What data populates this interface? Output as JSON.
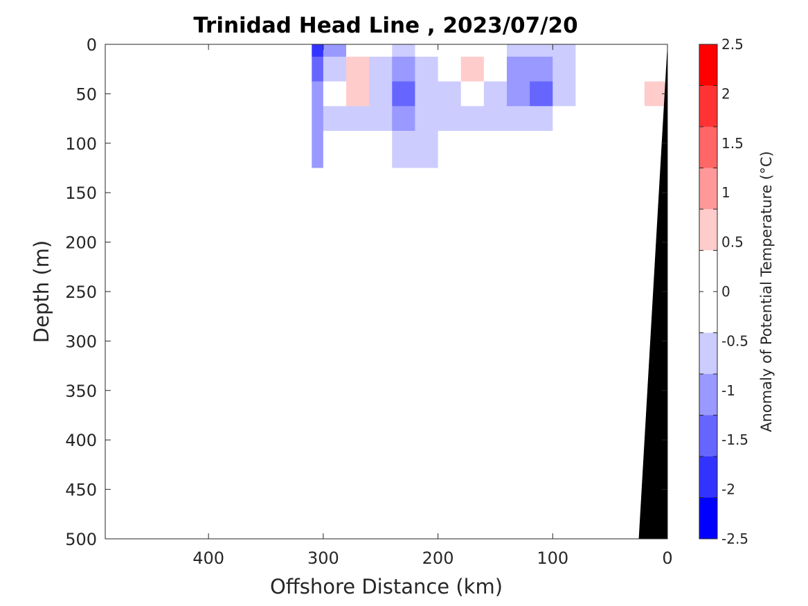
{
  "chart_data": {
    "type": "heatmap",
    "title": "Trinidad Head Line , 2023/07/20",
    "xlabel": "Offshore Distance (km)",
    "ylabel": "Depth (m)",
    "colorbar_label": "Anomaly of Potential Temperature (°C)",
    "xlim": [
      490,
      0
    ],
    "ylim": [
      500,
      0
    ],
    "x_ticks": [
      400,
      300,
      200,
      100,
      0
    ],
    "y_ticks": [
      0,
      50,
      100,
      150,
      200,
      250,
      300,
      350,
      400,
      450,
      500
    ],
    "colorbar_range": [
      -2.5,
      2.5
    ],
    "colorbar_ticks": [
      2.5,
      2,
      1.5,
      1,
      0.5,
      0,
      -0.5,
      -1,
      -1.5,
      -2,
      -2.5
    ],
    "colorbar_colors": [
      "#ff0000",
      "#ff3333",
      "#ff6666",
      "#ff9999",
      "#ffcccc",
      "#ffffff",
      "#ffffff",
      "#ccccff",
      "#9999ff",
      "#6666ff",
      "#3333ff",
      "#0000ff"
    ],
    "data_extent_km": [
      310,
      0
    ],
    "cells": {
      "x_km": [
        310,
        290,
        270,
        250,
        230,
        210,
        190,
        170,
        150,
        130,
        110,
        90,
        70,
        50,
        30,
        10
      ],
      "depth_m": [
        0,
        25,
        50,
        75,
        100,
        150,
        200,
        250,
        300,
        350,
        400,
        450,
        500
      ],
      "values": [
        [
          -1.8,
          -1.0,
          0.2,
          -0.3,
          -0.5,
          -0.4,
          0.1,
          0.3,
          0.1,
          -0.6,
          -0.6,
          -0.5,
          -0.4,
          0.0,
          0.0,
          0.0
        ],
        [
          -1.4,
          -0.6,
          0.6,
          -0.6,
          -1.0,
          -0.6,
          0.0,
          0.5,
          0.2,
          -0.9,
          -1.1,
          -0.6,
          -0.3,
          0.0,
          0.2,
          0.2
        ],
        [
          -1.2,
          -0.4,
          0.6,
          -0.8,
          -1.3,
          -0.8,
          -0.5,
          -0.4,
          -0.6,
          -1.2,
          -1.5,
          -0.6,
          0.1,
          0.2,
          0.2,
          0.5
        ],
        [
          -1.0,
          -0.5,
          -0.6,
          -0.8,
          -0.9,
          -0.7,
          -0.6,
          -0.6,
          -0.6,
          -0.6,
          -0.6,
          0.2,
          0.3,
          0.2,
          0.3,
          0.3
        ],
        [
          -1.0,
          -0.4,
          0.0,
          -0.4,
          -0.6,
          -0.6,
          -0.3,
          -0.3,
          -0.3,
          -0.4,
          -0.4,
          0.1,
          0.3,
          0.3,
          0.3,
          0.3
        ],
        [
          -0.4,
          0.1,
          0.3,
          0.1,
          -0.4,
          -0.4,
          0.1,
          0.1,
          0.1,
          0.0,
          -0.2,
          0.1,
          0.3,
          0.3,
          0.3,
          0.3
        ],
        [
          -0.4,
          0.1,
          0.3,
          0.1,
          -0.4,
          -0.4,
          0.1,
          0.1,
          0.1,
          0.0,
          0.0,
          0.3,
          0.3,
          0.3,
          0.3,
          0.3
        ],
        [
          -0.3,
          0.1,
          0.1,
          0.0,
          -0.4,
          -0.4,
          0.1,
          0.1,
          0.1,
          0.0,
          0.1,
          0.3,
          0.3,
          0.3,
          0.2,
          0.3
        ],
        [
          0.0,
          0.2,
          0.3,
          0.0,
          -0.4,
          -0.4,
          0.1,
          0.1,
          0.1,
          0.0,
          0.2,
          0.3,
          0.3,
          0.3,
          0.2,
          0.3
        ],
        [
          0.0,
          0.1,
          0.3,
          0.0,
          -0.4,
          -0.4,
          0.1,
          0.1,
          0.1,
          0.0,
          0.2,
          0.3,
          0.3,
          0.3,
          0.2,
          0.3
        ],
        [
          -0.3,
          0.0,
          0.1,
          0.0,
          -0.4,
          -0.4,
          0.1,
          0.1,
          0.1,
          0.0,
          0.2,
          0.3,
          0.3,
          0.2,
          0.2,
          0.3
        ],
        [
          0.0,
          0.0,
          0.3,
          0.0,
          -0.4,
          -0.4,
          0.1,
          0.1,
          0.1,
          0.0,
          0.2,
          0.3,
          0.3,
          0.2,
          0.1,
          0.3
        ],
        [
          0.0,
          0.0,
          0.3,
          0.0,
          -0.4,
          -0.4,
          0.1,
          0.1,
          0.1,
          0.0,
          0.2,
          0.3,
          0.2,
          0.2,
          0.1,
          0.3
        ]
      ]
    },
    "seafloor_color": "#000000",
    "seafloor_boundary": [
      [
        0,
        0
      ],
      [
        25,
        500
      ]
    ]
  }
}
